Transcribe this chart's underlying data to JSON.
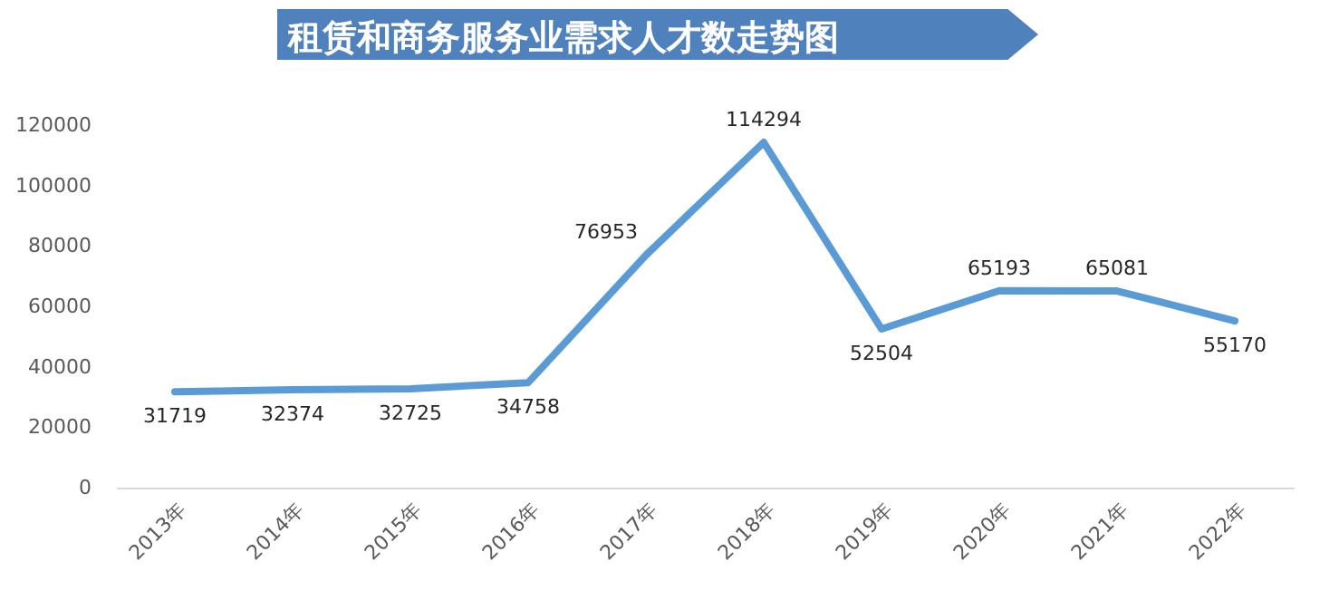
{
  "chart_data": {
    "type": "line",
    "title": "租赁和商务服务业需求人才数走势图",
    "categories": [
      "2013年",
      "2014年",
      "2015年",
      "2016年",
      "2017年",
      "2018年",
      "2019年",
      "2020年",
      "2021年",
      "2022年"
    ],
    "series": [
      {
        "color": "#5b9bd5",
        "values": [
          31719,
          32374,
          32725,
          34758,
          76953,
          114294,
          52504,
          65193,
          65081,
          55170
        ]
      }
    ],
    "ylim": [
      0,
      120000
    ],
    "yticks": [
      0,
      20000,
      40000,
      60000,
      80000,
      100000,
      120000
    ],
    "data_labels": true,
    "grid": false,
    "marker": "none",
    "line_style": "solid"
  }
}
